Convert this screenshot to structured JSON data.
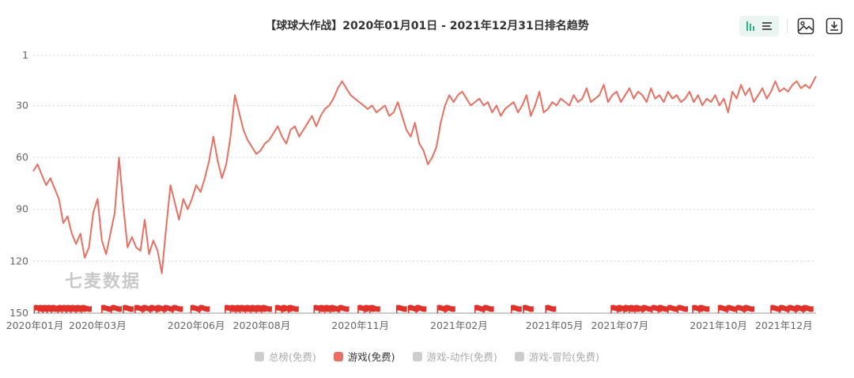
{
  "toolbar": {
    "chart_view_icon": "bar-list-toggle-icon",
    "save_image_icon": "image-icon",
    "download_icon": "download-icon"
  },
  "watermark": "七麦数据",
  "legend": [
    {
      "label": "总榜(免费)",
      "active": false
    },
    {
      "label": "游戏(免费)",
      "active": true
    },
    {
      "label": "游戏-动作(免费)",
      "active": false
    },
    {
      "label": "游戏-冒险(免费)",
      "active": false
    }
  ],
  "colors": {
    "series": "#e77062",
    "flag": "#e0312a",
    "grid": "#d8d8d8",
    "inactive": "#cccccc"
  },
  "chart_data": {
    "type": "line",
    "title": "【球球大作战】2020年01月01日 - 2021年12月31日排名趋势",
    "y_inverted": true,
    "ylim": [
      1,
      150
    ],
    "yticks": [
      1,
      30,
      60,
      90,
      120,
      150
    ],
    "xlim": [
      "2020-01-01",
      "2021-12-31"
    ],
    "xticks": [
      {
        "date": "2020-01-01",
        "label": "2020年01月"
      },
      {
        "date": "2020-03-01",
        "label": "2020年03月"
      },
      {
        "date": "2020-06-01",
        "label": "2020年06月"
      },
      {
        "date": "2020-08-01",
        "label": "2020年08月"
      },
      {
        "date": "2020-11-01",
        "label": "2020年11月"
      },
      {
        "date": "2021-02-01",
        "label": "2021年02月"
      },
      {
        "date": "2021-05-01",
        "label": "2021年05月"
      },
      {
        "date": "2021-07-01",
        "label": "2021年07月"
      },
      {
        "date": "2021-10-01",
        "label": "2021年10月"
      },
      {
        "date": "2021-12-01",
        "label": "2021年12月"
      }
    ],
    "grid": true,
    "legend_position": "bottom",
    "series": [
      {
        "name": "游戏(免费)",
        "points": [
          [
            "2020-01-01",
            68
          ],
          [
            "2020-01-05",
            64
          ],
          [
            "2020-01-09",
            70
          ],
          [
            "2020-01-13",
            76
          ],
          [
            "2020-01-17",
            72
          ],
          [
            "2020-01-21",
            78
          ],
          [
            "2020-01-25",
            84
          ],
          [
            "2020-01-29",
            98
          ],
          [
            "2020-02-02",
            94
          ],
          [
            "2020-02-06",
            104
          ],
          [
            "2020-02-10",
            110
          ],
          [
            "2020-02-14",
            104
          ],
          [
            "2020-02-18",
            118
          ],
          [
            "2020-02-22",
            112
          ],
          [
            "2020-02-26",
            92
          ],
          [
            "2020-03-01",
            84
          ],
          [
            "2020-03-05",
            108
          ],
          [
            "2020-03-09",
            116
          ],
          [
            "2020-03-13",
            104
          ],
          [
            "2020-03-17",
            92
          ],
          [
            "2020-03-21",
            60
          ],
          [
            "2020-03-25",
            88
          ],
          [
            "2020-03-29",
            112
          ],
          [
            "2020-04-02",
            106
          ],
          [
            "2020-04-06",
            112
          ],
          [
            "2020-04-10",
            114
          ],
          [
            "2020-04-14",
            96
          ],
          [
            "2020-04-18",
            116
          ],
          [
            "2020-04-22",
            108
          ],
          [
            "2020-04-26",
            114
          ],
          [
            "2020-04-30",
            127
          ],
          [
            "2020-05-04",
            100
          ],
          [
            "2020-05-08",
            76
          ],
          [
            "2020-05-12",
            86
          ],
          [
            "2020-05-16",
            96
          ],
          [
            "2020-05-20",
            84
          ],
          [
            "2020-05-24",
            90
          ],
          [
            "2020-05-28",
            84
          ],
          [
            "2020-06-01",
            76
          ],
          [
            "2020-06-05",
            80
          ],
          [
            "2020-06-09",
            72
          ],
          [
            "2020-06-13",
            62
          ],
          [
            "2020-06-17",
            48
          ],
          [
            "2020-06-21",
            62
          ],
          [
            "2020-06-25",
            72
          ],
          [
            "2020-06-29",
            64
          ],
          [
            "2020-07-03",
            48
          ],
          [
            "2020-07-07",
            24
          ],
          [
            "2020-07-11",
            34
          ],
          [
            "2020-07-15",
            44
          ],
          [
            "2020-07-19",
            50
          ],
          [
            "2020-07-23",
            54
          ],
          [
            "2020-07-27",
            58
          ],
          [
            "2020-07-31",
            56
          ],
          [
            "2020-08-04",
            52
          ],
          [
            "2020-08-08",
            50
          ],
          [
            "2020-08-12",
            46
          ],
          [
            "2020-08-16",
            42
          ],
          [
            "2020-08-20",
            48
          ],
          [
            "2020-08-24",
            52
          ],
          [
            "2020-08-28",
            44
          ],
          [
            "2020-09-01",
            42
          ],
          [
            "2020-09-05",
            48
          ],
          [
            "2020-09-09",
            44
          ],
          [
            "2020-09-13",
            40
          ],
          [
            "2020-09-17",
            36
          ],
          [
            "2020-09-21",
            42
          ],
          [
            "2020-09-25",
            36
          ],
          [
            "2020-09-29",
            32
          ],
          [
            "2020-10-03",
            30
          ],
          [
            "2020-10-07",
            26
          ],
          [
            "2020-10-11",
            20
          ],
          [
            "2020-10-15",
            16
          ],
          [
            "2020-10-19",
            20
          ],
          [
            "2020-10-23",
            24
          ],
          [
            "2020-10-27",
            26
          ],
          [
            "2020-10-31",
            28
          ],
          [
            "2020-11-04",
            30
          ],
          [
            "2020-11-08",
            32
          ],
          [
            "2020-11-12",
            30
          ],
          [
            "2020-11-16",
            34
          ],
          [
            "2020-11-20",
            32
          ],
          [
            "2020-11-24",
            30
          ],
          [
            "2020-11-28",
            36
          ],
          [
            "2020-12-02",
            34
          ],
          [
            "2020-12-06",
            28
          ],
          [
            "2020-12-10",
            36
          ],
          [
            "2020-12-14",
            44
          ],
          [
            "2020-12-18",
            48
          ],
          [
            "2020-12-22",
            40
          ],
          [
            "2020-12-26",
            52
          ],
          [
            "2020-12-30",
            56
          ],
          [
            "2021-01-03",
            64
          ],
          [
            "2021-01-07",
            60
          ],
          [
            "2021-01-11",
            54
          ],
          [
            "2021-01-15",
            40
          ],
          [
            "2021-01-19",
            30
          ],
          [
            "2021-01-23",
            24
          ],
          [
            "2021-01-27",
            28
          ],
          [
            "2021-01-31",
            24
          ],
          [
            "2021-02-04",
            22
          ],
          [
            "2021-02-08",
            26
          ],
          [
            "2021-02-12",
            30
          ],
          [
            "2021-02-16",
            28
          ],
          [
            "2021-02-20",
            26
          ],
          [
            "2021-02-24",
            30
          ],
          [
            "2021-02-28",
            28
          ],
          [
            "2021-03-04",
            34
          ],
          [
            "2021-03-08",
            30
          ],
          [
            "2021-03-12",
            36
          ],
          [
            "2021-03-16",
            32
          ],
          [
            "2021-03-20",
            30
          ],
          [
            "2021-03-24",
            28
          ],
          [
            "2021-03-28",
            34
          ],
          [
            "2021-04-01",
            30
          ],
          [
            "2021-04-05",
            24
          ],
          [
            "2021-04-09",
            36
          ],
          [
            "2021-04-13",
            30
          ],
          [
            "2021-04-17",
            22
          ],
          [
            "2021-04-21",
            34
          ],
          [
            "2021-04-25",
            32
          ],
          [
            "2021-04-29",
            28
          ],
          [
            "2021-05-03",
            30
          ],
          [
            "2021-05-07",
            26
          ],
          [
            "2021-05-11",
            28
          ],
          [
            "2021-05-15",
            30
          ],
          [
            "2021-05-19",
            24
          ],
          [
            "2021-05-23",
            28
          ],
          [
            "2021-05-27",
            26
          ],
          [
            "2021-05-31",
            20
          ],
          [
            "2021-06-04",
            28
          ],
          [
            "2021-06-08",
            26
          ],
          [
            "2021-06-12",
            24
          ],
          [
            "2021-06-16",
            18
          ],
          [
            "2021-06-20",
            28
          ],
          [
            "2021-06-24",
            24
          ],
          [
            "2021-06-28",
            22
          ],
          [
            "2021-07-02",
            28
          ],
          [
            "2021-07-06",
            24
          ],
          [
            "2021-07-10",
            20
          ],
          [
            "2021-07-14",
            26
          ],
          [
            "2021-07-18",
            22
          ],
          [
            "2021-07-22",
            24
          ],
          [
            "2021-07-26",
            28
          ],
          [
            "2021-07-30",
            20
          ],
          [
            "2021-08-03",
            26
          ],
          [
            "2021-08-07",
            24
          ],
          [
            "2021-08-11",
            28
          ],
          [
            "2021-08-15",
            22
          ],
          [
            "2021-08-19",
            26
          ],
          [
            "2021-08-23",
            24
          ],
          [
            "2021-08-27",
            28
          ],
          [
            "2021-08-31",
            26
          ],
          [
            "2021-09-04",
            22
          ],
          [
            "2021-09-08",
            28
          ],
          [
            "2021-09-12",
            24
          ],
          [
            "2021-09-16",
            30
          ],
          [
            "2021-09-20",
            26
          ],
          [
            "2021-09-24",
            28
          ],
          [
            "2021-09-28",
            24
          ],
          [
            "2021-10-02",
            30
          ],
          [
            "2021-10-06",
            26
          ],
          [
            "2021-10-10",
            34
          ],
          [
            "2021-10-14",
            22
          ],
          [
            "2021-10-18",
            26
          ],
          [
            "2021-10-22",
            18
          ],
          [
            "2021-10-26",
            24
          ],
          [
            "2021-10-30",
            20
          ],
          [
            "2021-11-03",
            28
          ],
          [
            "2021-11-07",
            24
          ],
          [
            "2021-11-11",
            20
          ],
          [
            "2021-11-15",
            26
          ],
          [
            "2021-11-19",
            22
          ],
          [
            "2021-11-23",
            16
          ],
          [
            "2021-11-27",
            22
          ],
          [
            "2021-12-01",
            20
          ],
          [
            "2021-12-05",
            22
          ],
          [
            "2021-12-09",
            18
          ],
          [
            "2021-12-13",
            16
          ],
          [
            "2021-12-17",
            20
          ],
          [
            "2021-12-21",
            18
          ],
          [
            "2021-12-25",
            20
          ],
          [
            "2021-12-31",
            13
          ]
        ]
      }
    ],
    "flags": [
      "2020-01-02",
      "2020-01-06",
      "2020-01-10",
      "2020-01-14",
      "2020-01-18",
      "2020-01-24",
      "2020-01-28",
      "2020-02-01",
      "2020-02-05",
      "2020-02-10",
      "2020-02-15",
      "2020-03-05",
      "2020-03-14",
      "2020-03-25",
      "2020-04-05",
      "2020-04-12",
      "2020-04-19",
      "2020-04-25",
      "2020-05-02",
      "2020-05-10",
      "2020-05-27",
      "2020-06-04",
      "2020-06-28",
      "2020-07-03",
      "2020-07-08",
      "2020-07-12",
      "2020-07-17",
      "2020-07-22",
      "2020-07-27",
      "2020-08-01",
      "2020-08-14",
      "2020-08-20",
      "2020-08-26",
      "2020-09-19",
      "2020-09-24",
      "2020-09-29",
      "2020-10-04",
      "2020-10-12",
      "2020-10-30",
      "2020-11-05",
      "2020-11-10",
      "2020-12-05",
      "2020-12-16",
      "2020-12-23",
      "2021-01-12",
      "2021-01-19",
      "2021-02-16",
      "2021-02-24",
      "2021-03-22",
      "2021-04-02",
      "2021-04-23",
      "2021-06-23",
      "2021-06-29",
      "2021-07-05",
      "2021-07-10",
      "2021-07-15",
      "2021-07-22",
      "2021-07-31",
      "2021-08-06",
      "2021-08-15",
      "2021-08-24",
      "2021-09-07",
      "2021-09-13",
      "2021-10-01",
      "2021-10-09",
      "2021-10-18",
      "2021-10-25",
      "2021-11-19",
      "2021-11-27",
      "2021-12-05",
      "2021-12-12",
      "2021-12-19"
    ]
  }
}
